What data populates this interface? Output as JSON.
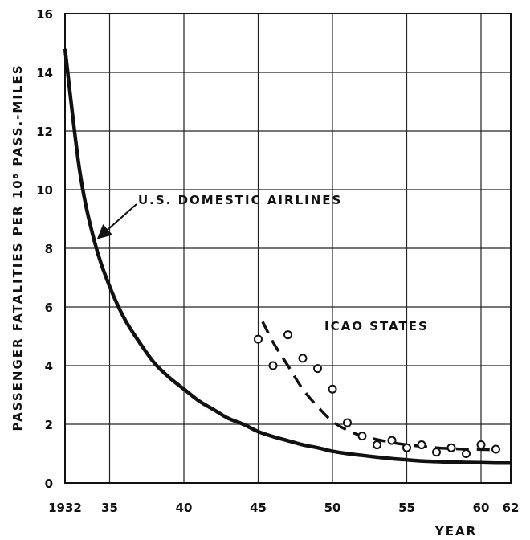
{
  "chart_data": {
    "type": "line",
    "title": "",
    "xlabel": "YEAR",
    "ylabel": "PASSENGER FATALITIES  PER 10⁸ PASS.-MILES",
    "xlim": [
      1932,
      1962
    ],
    "ylim": [
      0,
      16
    ],
    "grid": true,
    "x_ticks": [
      1932,
      1935,
      1940,
      1945,
      1950,
      1955,
      1960,
      1962
    ],
    "x_tick_labels": [
      "1932",
      "35",
      "40",
      "45",
      "50",
      "55",
      "60",
      "62"
    ],
    "y_ticks": [
      0,
      2,
      4,
      6,
      8,
      10,
      12,
      14,
      16
    ],
    "y_tick_labels": [
      "0",
      "2",
      "4",
      "6",
      "8",
      "10",
      "12",
      "14",
      "16"
    ],
    "series": [
      {
        "name": "U.S. DOMESTIC AIRLINES",
        "style": "solid",
        "x": [
          1932,
          1933,
          1934,
          1935,
          1936,
          1937,
          1938,
          1939,
          1940,
          1941,
          1942,
          1943,
          1944,
          1945,
          1946,
          1947,
          1948,
          1949,
          1950,
          1951,
          1952,
          1953,
          1954,
          1955,
          1956,
          1957,
          1958,
          1959,
          1960,
          1961,
          1962
        ],
        "y": [
          14.8,
          10.6,
          8.2,
          6.7,
          5.6,
          4.8,
          4.1,
          3.6,
          3.2,
          2.8,
          2.5,
          2.2,
          2.0,
          1.75,
          1.58,
          1.44,
          1.3,
          1.2,
          1.08,
          1.0,
          0.94,
          0.88,
          0.83,
          0.79,
          0.75,
          0.73,
          0.71,
          0.7,
          0.69,
          0.68,
          0.68
        ]
      },
      {
        "name": "ICAO STATES",
        "style": "dashed",
        "x": [
          1945.3,
          1946,
          1947,
          1948,
          1949,
          1950,
          1951,
          1952,
          1953,
          1954,
          1955,
          1956,
          1957,
          1958,
          1959,
          1960,
          1961
        ],
        "y": [
          5.5,
          4.8,
          4.0,
          3.2,
          2.6,
          2.1,
          1.8,
          1.6,
          1.48,
          1.38,
          1.3,
          1.25,
          1.2,
          1.17,
          1.15,
          1.14,
          1.13
        ]
      },
      {
        "name": "ICAO STATES (observed)",
        "style": "markers",
        "x": [
          1945,
          1946,
          1947,
          1948,
          1949,
          1950,
          1951,
          1952,
          1953,
          1954,
          1955,
          1956,
          1957,
          1958,
          1959,
          1960,
          1961
        ],
        "y": [
          4.9,
          4.0,
          5.05,
          4.25,
          3.9,
          3.2,
          2.05,
          1.6,
          1.3,
          1.45,
          1.2,
          1.3,
          1.05,
          1.2,
          1.0,
          1.3,
          1.15
        ]
      }
    ],
    "annotations": [
      {
        "text": "U.S. DOMESTIC AIRLINES",
        "points_to": [
          1933.9,
          8.4
        ]
      },
      {
        "text": "ICAO STATES"
      }
    ]
  }
}
